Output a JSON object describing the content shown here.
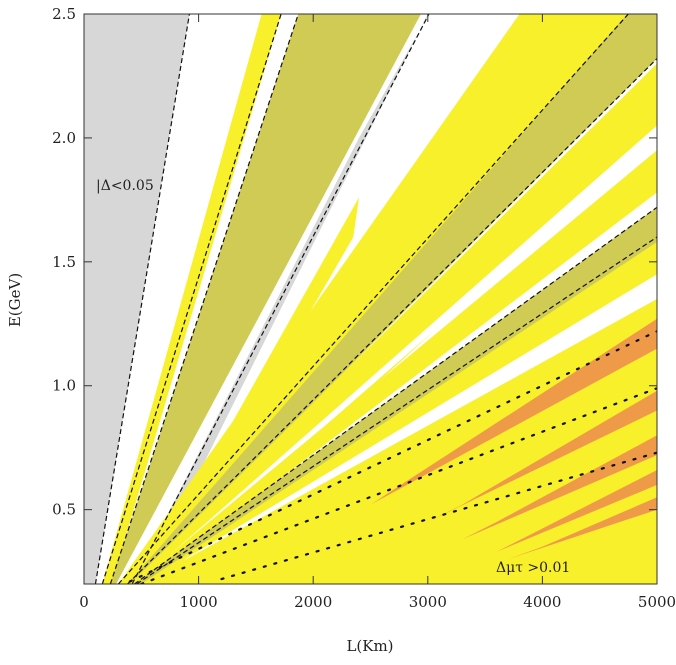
{
  "chart_data": {
    "type": "contour",
    "xlabel": "L(Km)",
    "ylabel": "E(GeV)",
    "xlim": [
      0,
      5000
    ],
    "ylim": [
      0.2,
      2.5
    ],
    "xticks": [
      0,
      1000,
      2000,
      3000,
      4000,
      5000
    ],
    "yticks": [
      0.5,
      1.0,
      1.5,
      2.0,
      2.5
    ],
    "ytick_labels": [
      "0.5",
      "1.0",
      "1.5",
      "2.0",
      "2.5"
    ],
    "annotations": [
      {
        "text": "|Δ<0.05",
        "x": 100,
        "y": 1.8
      },
      {
        "text": "Δμτ >0.01",
        "x": 3700,
        "y": 0.27
      }
    ],
    "colors": {
      "gray": "#d7d7d7",
      "yellow": "#f7f02a",
      "olive": "#cfcb55",
      "orange": "#ef9a48",
      "darkorange": "#d9782c",
      "dashed": "#111111"
    },
    "regions": [
      {
        "color": "gray",
        "polygon": [
          [
            100,
            0.2
          ],
          [
            0,
            0.2
          ],
          [
            0,
            2.5
          ],
          [
            920,
            2.5
          ]
        ]
      },
      {
        "color": "yellow",
        "polygon": [
          [
            240,
            0.2
          ],
          [
            160,
            0.2
          ],
          [
            1550,
            2.5
          ],
          [
            1720,
            2.5
          ]
        ]
      },
      {
        "color": "olive",
        "polygon": [
          [
            280,
            0.2
          ],
          [
            230,
            0.2
          ],
          [
            1870,
            2.5
          ],
          [
            2940,
            2.5
          ]
        ]
      },
      {
        "color": "gray",
        "polygon": [
          [
            520,
            0.2
          ],
          [
            420,
            0.2
          ],
          [
            2400,
            2.0
          ],
          [
            3010,
            2.5
          ],
          [
            3000,
            2.5
          ]
        ]
      },
      {
        "color": "yellow",
        "polygon": [
          [
            600,
            0.2
          ],
          [
            500,
            0.2
          ],
          [
            2400,
            1.76
          ],
          [
            2350,
            1.6
          ]
        ]
      },
      {
        "color": "yellow",
        "polygon": [
          [
            650,
            0.2
          ],
          [
            520,
            0.2
          ],
          [
            3200,
            1.28
          ],
          [
            3050,
            1.22
          ]
        ]
      },
      {
        "color": "yellow",
        "polygon": [
          [
            460,
            0.2
          ],
          [
            400,
            0.2
          ],
          [
            2700,
            1.3
          ],
          [
            2900,
            1.35
          ]
        ]
      },
      {
        "color": "yellow",
        "polygon": [
          [
            400,
            0.2
          ],
          [
            300,
            0.2
          ],
          [
            3800,
            2.5
          ],
          [
            4750,
            2.5
          ]
        ]
      },
      {
        "color": "olive",
        "polygon": [
          [
            420,
            0.2
          ],
          [
            380,
            0.2
          ],
          [
            4740,
            2.5
          ],
          [
            5000,
            2.5
          ],
          [
            5000,
            2.32
          ]
        ]
      },
      {
        "color": "yellow",
        "polygon": [
          [
            460,
            0.2
          ],
          [
            400,
            0.2
          ],
          [
            5000,
            2.3
          ],
          [
            5000,
            2.05
          ]
        ]
      },
      {
        "color": "yellow",
        "polygon": [
          [
            500,
            0.2
          ],
          [
            440,
            0.2
          ],
          [
            5000,
            1.95
          ],
          [
            5000,
            1.78
          ]
        ]
      },
      {
        "color": "yellow",
        "polygon": [
          [
            520,
            0.2
          ],
          [
            460,
            0.2
          ],
          [
            5000,
            1.7
          ],
          [
            5000,
            1.45
          ]
        ]
      },
      {
        "color": "olive",
        "polygon": [
          [
            500,
            0.2
          ],
          [
            440,
            0.2
          ],
          [
            5000,
            1.72
          ],
          [
            5000,
            1.58
          ]
        ]
      },
      {
        "color": "yellow",
        "polygon": [
          [
            560,
            0.2
          ],
          [
            500,
            0.2
          ],
          [
            5000,
            1.35
          ],
          [
            5000,
            1.2
          ]
        ]
      },
      {
        "color": "yellow",
        "polygon": [
          [
            700,
            0.2
          ],
          [
            560,
            0.2
          ],
          [
            5000,
            1.27
          ],
          [
            5000,
            0.2
          ]
        ]
      },
      {
        "color": "orange",
        "polygon": [
          [
            2500,
            0.52
          ],
          [
            2700,
            0.58
          ],
          [
            5000,
            1.27
          ],
          [
            5000,
            1.15
          ]
        ]
      },
      {
        "color": "orange",
        "polygon": [
          [
            3000,
            0.45
          ],
          [
            3300,
            0.52
          ],
          [
            5000,
            0.98
          ],
          [
            5000,
            0.9
          ]
        ]
      },
      {
        "color": "orange",
        "polygon": [
          [
            3300,
            0.38
          ],
          [
            3600,
            0.45
          ],
          [
            5000,
            0.8
          ],
          [
            5000,
            0.72
          ]
        ]
      },
      {
        "color": "orange",
        "polygon": [
          [
            3600,
            0.33
          ],
          [
            3900,
            0.4
          ],
          [
            5000,
            0.66
          ],
          [
            5000,
            0.6
          ]
        ]
      },
      {
        "color": "orange",
        "polygon": [
          [
            3700,
            0.3
          ],
          [
            4000,
            0.35
          ],
          [
            5000,
            0.55
          ],
          [
            5000,
            0.5
          ]
        ]
      }
    ],
    "dashed_lines": [
      {
        "from": [
          100,
          0.2
        ],
        "to": [
          920,
          2.5
        ]
      },
      {
        "from": [
          160,
          0.2
        ],
        "to": [
          1720,
          2.5
        ]
      },
      {
        "from": [
          230,
          0.2
        ],
        "to": [
          1870,
          2.5
        ]
      },
      {
        "from": [
          420,
          0.2
        ],
        "to": [
          3010,
          2.5
        ]
      },
      {
        "from": [
          300,
          0.2
        ],
        "to": [
          4750,
          2.5
        ]
      },
      {
        "from": [
          380,
          0.2
        ],
        "to": [
          5000,
          2.32
        ]
      },
      {
        "from": [
          440,
          0.2
        ],
        "to": [
          5000,
          1.72
        ]
      },
      {
        "from": [
          460,
          0.2
        ],
        "to": [
          5000,
          1.6
        ]
      }
    ],
    "dotted_lines": [
      {
        "from": [
          400,
          0.21
        ],
        "to": [
          5000,
          1.22
        ]
      },
      {
        "from": [
          500,
          0.2
        ],
        "to": [
          5000,
          0.99
        ]
      },
      {
        "from": [
          1200,
          0.22
        ],
        "to": [
          5000,
          0.73
        ]
      }
    ]
  }
}
